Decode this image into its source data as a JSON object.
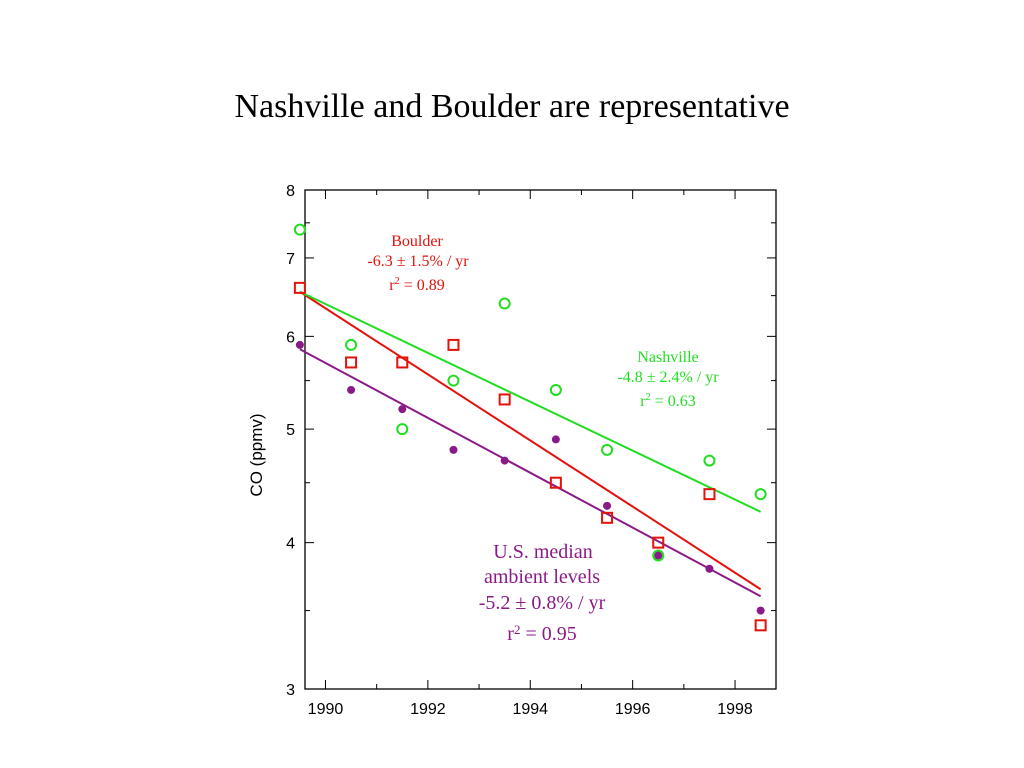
{
  "title": "Nashville and Boulder are representative",
  "chart_data": {
    "type": "scatter",
    "ylabel": "CO (ppmv)",
    "xlabel": "",
    "xlim": [
      1989.6,
      1998.8
    ],
    "ylim": [
      3,
      8
    ],
    "yscale": "log",
    "xticks": [
      1990,
      1992,
      1994,
      1996,
      1998
    ],
    "yticks": [
      3,
      4,
      5,
      6,
      7,
      8
    ],
    "series": [
      {
        "name": "Boulder",
        "color": "#e3120b",
        "marker": "square",
        "x": [
          1989.5,
          1990.5,
          1991.5,
          1992.5,
          1993.5,
          1994.5,
          1995.5,
          1996.5,
          1997.5,
          1998.5
        ],
        "y": [
          6.6,
          5.7,
          5.7,
          5.9,
          5.3,
          4.5,
          4.2,
          4.0,
          4.4,
          3.4
        ],
        "trend_start": [
          1989.5,
          6.55
        ],
        "trend_end": [
          1998.5,
          3.65
        ],
        "annotation": [
          "Boulder",
          "-6.3 ± 1.5% / yr",
          "r",
          "2",
          " = 0.89"
        ]
      },
      {
        "name": "Nashville",
        "color": "#22dd22",
        "marker": "circle",
        "x": [
          1989.5,
          1990.5,
          1991.5,
          1992.5,
          1993.5,
          1994.5,
          1995.5,
          1996.5,
          1997.5,
          1998.5
        ],
        "y": [
          7.4,
          5.9,
          5.0,
          5.5,
          6.4,
          5.4,
          4.8,
          3.9,
          4.7,
          4.4
        ],
        "trend_start": [
          1989.5,
          6.55
        ],
        "trend_end": [
          1998.5,
          4.25
        ],
        "annotation": [
          "Nashville",
          "-4.8 ± 2.4% / yr",
          "r",
          "2",
          " = 0.63"
        ]
      },
      {
        "name": "U.S. median ambient levels",
        "color": "#8b1a89",
        "marker": "dot",
        "x": [
          1989.5,
          1990.5,
          1991.5,
          1992.5,
          1993.5,
          1994.5,
          1995.5,
          1996.5,
          1997.5,
          1998.5
        ],
        "y": [
          5.9,
          5.4,
          5.2,
          4.8,
          4.7,
          4.9,
          4.3,
          3.9,
          3.8,
          3.5
        ],
        "trend_start": [
          1989.5,
          5.85
        ],
        "trend_end": [
          1998.5,
          3.6
        ],
        "annotation": [
          "U.S. median",
          "ambient levels",
          "-5.2 ± 0.8% / yr",
          "r",
          "2",
          " = 0.95"
        ]
      }
    ]
  }
}
